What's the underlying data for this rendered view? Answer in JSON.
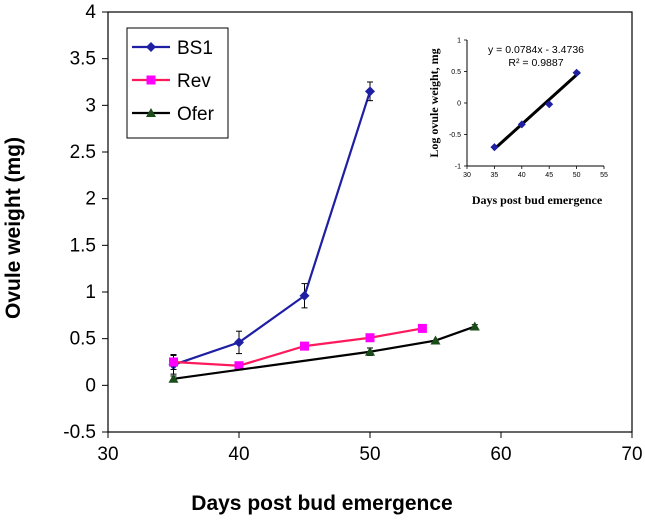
{
  "chart_data": [
    {
      "type": "line",
      "xlabel": "Days post bud emergence",
      "ylabel": "Ovule weight (mg)",
      "xlim": [
        30,
        70
      ],
      "ylim": [
        -0.5,
        4
      ],
      "xticks": [
        30,
        40,
        50,
        60,
        70
      ],
      "yticks": [
        -0.5,
        0,
        0.5,
        1,
        1.5,
        2,
        2.5,
        3,
        3.5,
        4
      ],
      "ytick_labels": [
        "-0.5",
        "0",
        "0.5",
        "1",
        "1.5",
        "2",
        "2.5",
        "3",
        "3.5",
        "4"
      ],
      "legend_position": "top-left",
      "series": [
        {
          "name": "BS1",
          "color": "#1f1fa3",
          "marker": "diamond",
          "x": [
            35,
            40,
            45,
            50
          ],
          "values": [
            0.22,
            0.46,
            0.96,
            3.15
          ],
          "errors": [
            0.1,
            0.12,
            0.13,
            0.1
          ]
        },
        {
          "name": "Rev",
          "color": "#ff1a5e",
          "marker_color": "#ff00ff",
          "marker": "square",
          "x": [
            35,
            40,
            45,
            50,
            54
          ],
          "values": [
            0.25,
            0.21,
            0.42,
            0.51,
            0.61
          ],
          "errors": [
            0.08,
            0.04,
            0.04,
            0.03,
            0
          ]
        },
        {
          "name": "Ofer",
          "color": "#000000",
          "marker_color": "#1a4d1a",
          "marker": "triangle",
          "x": [
            35,
            50,
            55,
            58
          ],
          "values": [
            0.07,
            0.36,
            0.48,
            0.63
          ],
          "errors": [
            0.03,
            0.04,
            0,
            0.02
          ]
        }
      ]
    },
    {
      "type": "scatter",
      "inset": true,
      "xlabel": "Days post bud emergence",
      "ylabel": "Log ovule weight, mg",
      "xlim": [
        30,
        55
      ],
      "ylim": [
        -1,
        1
      ],
      "xticks": [
        30,
        35,
        40,
        45,
        50,
        55
      ],
      "yticks": [
        -1,
        -0.5,
        0,
        0.5,
        1
      ],
      "ytick_labels": [
        "-1",
        "-0.5",
        "0",
        "0.5",
        "1"
      ],
      "points": {
        "x": [
          35,
          40,
          45,
          50
        ],
        "y": [
          -0.7,
          -0.34,
          -0.02,
          0.48
        ],
        "color": "#1f1fa3"
      },
      "trendline": {
        "slope": 0.0784,
        "intercept": -3.4736,
        "color": "#000000"
      },
      "equation": "y = 0.0784x - 3.4736",
      "r_squared": "R² = 0.9887"
    }
  ]
}
